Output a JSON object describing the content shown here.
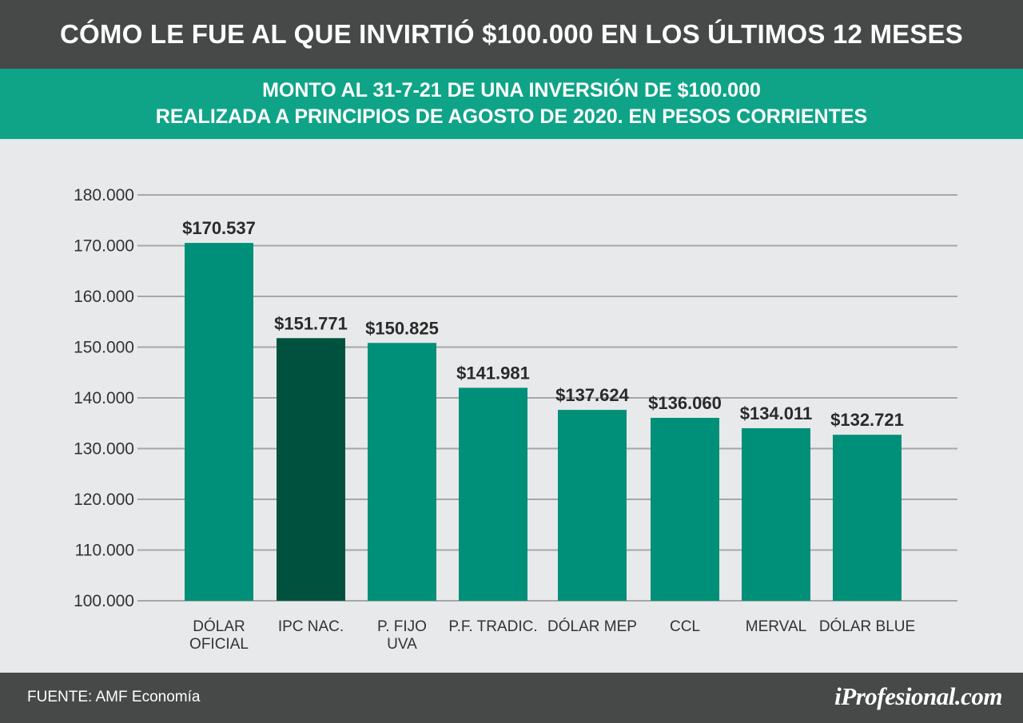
{
  "header": {
    "title": "CÓMO LE FUE AL QUE INVIRTIÓ $100.000 EN LOS ÚLTIMOS 12 MESES"
  },
  "subheader": {
    "line1": "MONTO AL 31-7-21 DE UNA INVERSIÓN DE $100.000",
    "line2": "REALIZADA A PRINCIPIOS DE AGOSTO DE 2020. EN PESOS CORRIENTES"
  },
  "chart_data": {
    "type": "bar",
    "categories": [
      [
        "DÓLAR",
        "OFICIAL"
      ],
      [
        "IPC NAC."
      ],
      [
        "P. FIJO",
        "UVA"
      ],
      [
        "P.F. TRADIC."
      ],
      [
        "DÓLAR MEP"
      ],
      [
        "CCL"
      ],
      [
        "MERVAL"
      ],
      [
        "DÓLAR BLUE"
      ]
    ],
    "values": [
      170537,
      151771,
      150825,
      141981,
      137624,
      136060,
      134011,
      132721
    ],
    "value_labels": [
      "$170.537",
      "$151.771",
      "$150.825",
      "$141.981",
      "$137.624",
      "$136.060",
      "$134.011",
      "$132.721"
    ],
    "ylim": [
      100000,
      180000
    ],
    "yticks": [
      100000,
      110000,
      120000,
      130000,
      140000,
      150000,
      160000,
      170000,
      180000
    ],
    "ytick_labels": [
      "100.000",
      "110.000",
      "120.000",
      "130.000",
      "140.000",
      "150.000",
      "160.000",
      "170.000",
      "180.000"
    ],
    "grid": true,
    "colors": {
      "bar": "#008f78",
      "highlight": "#00523f",
      "grid": "#a6a7a8"
    },
    "highlight_index": 1
  },
  "footer": {
    "source": "FUENTE: AMF Economía",
    "brand": "iProfesional.com"
  }
}
